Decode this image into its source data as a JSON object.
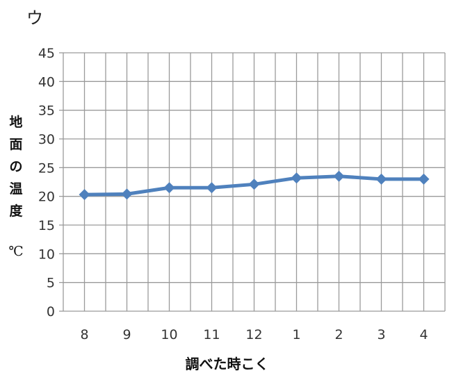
{
  "panel_label": "ウ",
  "chart_data": {
    "type": "line",
    "title": "",
    "xlabel": "調べた時こく",
    "ylabel": "地面の温度",
    "yunit": "℃",
    "categories": [
      "8",
      "9",
      "10",
      "11",
      "12",
      "1",
      "2",
      "3",
      "4"
    ],
    "values": [
      20.3,
      20.4,
      21.5,
      21.5,
      22.1,
      23.2,
      23.5,
      23.0,
      23.0
    ],
    "ylim": [
      0,
      45
    ],
    "yticks": [
      "0",
      "5",
      "10",
      "15",
      "20",
      "25",
      "30",
      "35",
      "40",
      "45"
    ],
    "grid": true,
    "legend": "none",
    "series_color": "#4F81BD",
    "grid_color": "#9a9a9a"
  }
}
